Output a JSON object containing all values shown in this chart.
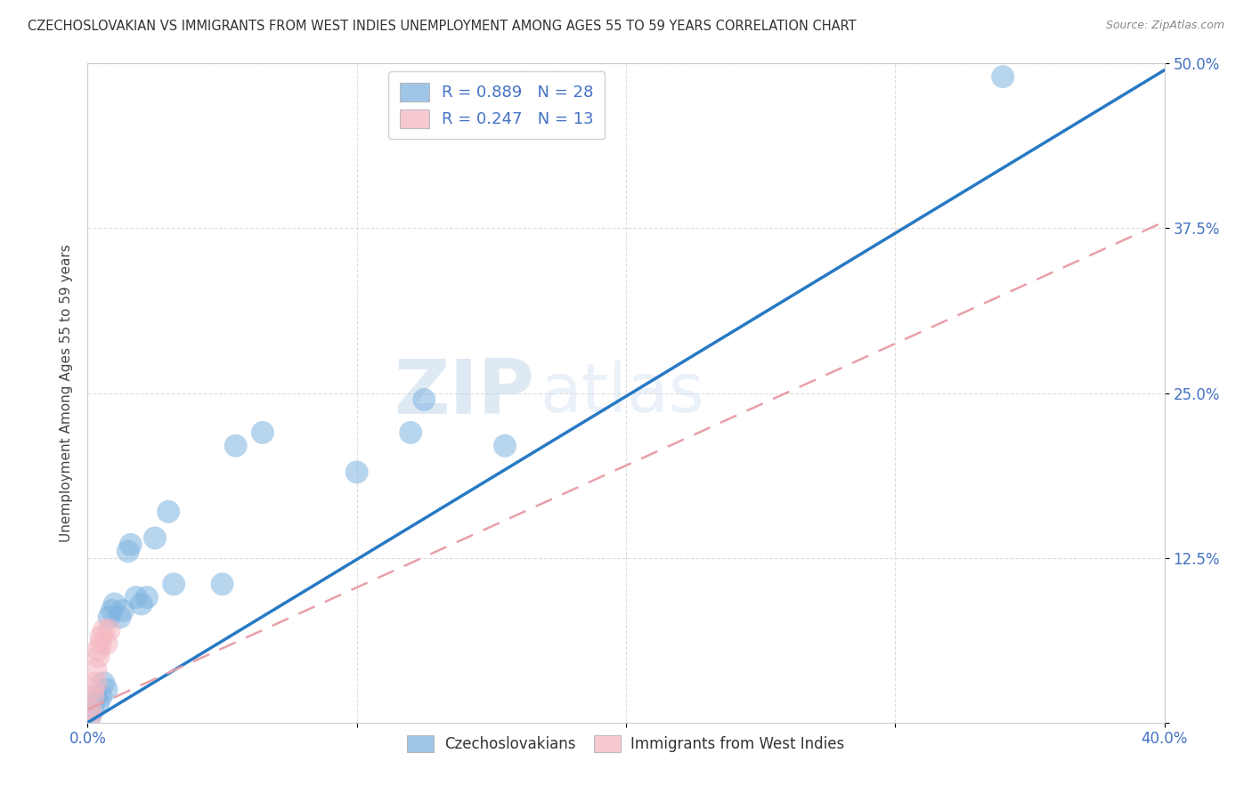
{
  "title": "CZECHOSLOVAKIAN VS IMMIGRANTS FROM WEST INDIES UNEMPLOYMENT AMONG AGES 55 TO 59 YEARS CORRELATION CHART",
  "source": "Source: ZipAtlas.com",
  "ylabel": "Unemployment Among Ages 55 to 59 years",
  "xlim": [
    0.0,
    0.4
  ],
  "ylim": [
    0.0,
    0.5
  ],
  "xticks": [
    0.0,
    0.1,
    0.2,
    0.3,
    0.4
  ],
  "xticklabels": [
    "0.0%",
    "",
    "",
    "",
    "40.0%"
  ],
  "yticks": [
    0.0,
    0.125,
    0.25,
    0.375,
    0.5
  ],
  "yticklabels": [
    "",
    "12.5%",
    "25.0%",
    "37.5%",
    "50.0%"
  ],
  "background_color": "#ffffff",
  "grid_color": "#dddddd",
  "legend1_R": "0.889",
  "legend1_N": "28",
  "legend2_R": "0.247",
  "legend2_N": "13",
  "blue_color": "#7fb3e0",
  "pink_color": "#f4b8c1",
  "line_blue": "#2779c4",
  "line_pink": "#e8a0a8",
  "czech_x": [
    0.001,
    0.002,
    0.003,
    0.004,
    0.005,
    0.006,
    0.007,
    0.008,
    0.009,
    0.01,
    0.012,
    0.013,
    0.015,
    0.016,
    0.018,
    0.02,
    0.022,
    0.025,
    0.03,
    0.032,
    0.05,
    0.055,
    0.065,
    0.1,
    0.12,
    0.125,
    0.155,
    0.34
  ],
  "czech_y": [
    0.005,
    0.01,
    0.02,
    0.015,
    0.02,
    0.03,
    0.025,
    0.08,
    0.085,
    0.09,
    0.08,
    0.085,
    0.13,
    0.135,
    0.095,
    0.09,
    0.095,
    0.14,
    0.16,
    0.105,
    0.105,
    0.21,
    0.22,
    0.19,
    0.22,
    0.245,
    0.21,
    0.49
  ],
  "westindies_x": [
    0.001,
    0.001,
    0.002,
    0.002,
    0.003,
    0.003,
    0.004,
    0.004,
    0.005,
    0.005,
    0.006,
    0.007,
    0.008
  ],
  "westindies_y": [
    0.005,
    0.01,
    0.02,
    0.025,
    0.03,
    0.04,
    0.05,
    0.055,
    0.06,
    0.065,
    0.07,
    0.06,
    0.07
  ],
  "blue_line_x": [
    0.0,
    0.4
  ],
  "blue_line_y": [
    0.0,
    0.495
  ],
  "pink_line_x": [
    0.0,
    0.4
  ],
  "pink_line_y": [
    0.01,
    0.38
  ]
}
